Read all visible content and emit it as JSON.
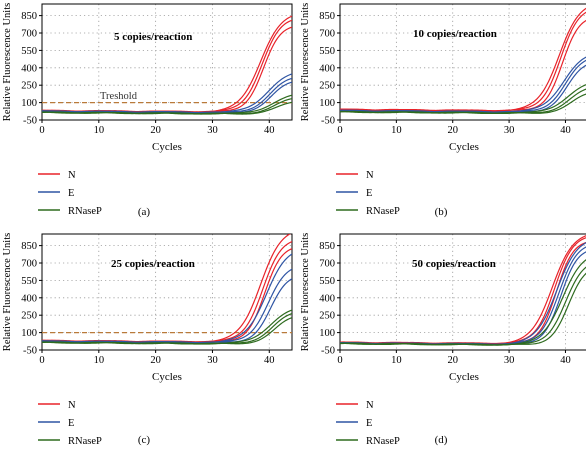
{
  "colors": {
    "N": "#e8232a",
    "E": "#2f55a4",
    "RNaseP": "#2e6b1f",
    "threshold": "#b97a3a",
    "grid": "#9a9a9a"
  },
  "shared": {
    "ylabel": "Relative Fluorescence Units",
    "xlabel": "Cycles",
    "threshold_label": "Treshold",
    "legend": [
      "N",
      "E",
      "RNaseP"
    ]
  },
  "chart_data": [
    {
      "type": "line",
      "panel_label": "(a)",
      "title": "5 copies/reaction",
      "xlabel": "Cycles",
      "ylabel": "Relative Fluorescence Units",
      "xlim": [
        0,
        44
      ],
      "ylim": [
        -50,
        950
      ],
      "xticks": [
        0,
        10,
        20,
        30,
        40
      ],
      "yticks": [
        -50,
        100,
        250,
        400,
        550,
        700,
        850
      ],
      "threshold": 100,
      "threshold_label": "Treshold",
      "grid": true,
      "legend_position": "below",
      "baseline_start": [
        30,
        25,
        15
      ],
      "series": [
        {
          "name": "N",
          "count": 3,
          "ct": [
            36.6,
            36.9,
            37.2
          ],
          "plateau": [
            860,
            820,
            760
          ]
        },
        {
          "name": "E",
          "count": 3,
          "ct": [
            37.9,
            38.3,
            38.7
          ],
          "plateau": [
            360,
            320,
            290
          ]
        },
        {
          "name": "RNaseP",
          "count": 3,
          "ct": [
            38.8,
            39.3,
            39.8
          ],
          "plateau": [
            180,
            150,
            120
          ]
        }
      ]
    },
    {
      "type": "line",
      "panel_label": "(b)",
      "title": "10 copies/reaction",
      "xlabel": "Cycles",
      "ylabel": "Relative Fluorescence Units",
      "xlim": [
        0,
        44
      ],
      "ylim": [
        -50,
        950
      ],
      "xticks": [
        0,
        10,
        20,
        30,
        40
      ],
      "yticks": [
        -50,
        100,
        250,
        400,
        550,
        700,
        850
      ],
      "threshold": null,
      "grid": true,
      "legend_position": "below",
      "baseline_start": [
        40,
        30,
        20
      ],
      "series": [
        {
          "name": "N",
          "count": 3,
          "ct": [
            37.0,
            37.3,
            37.7
          ],
          "plateau": [
            940,
            900,
            830
          ]
        },
        {
          "name": "E",
          "count": 3,
          "ct": [
            37.8,
            38.2,
            38.6
          ],
          "plateau": [
            520,
            490,
            450
          ]
        },
        {
          "name": "RNaseP",
          "count": 3,
          "ct": [
            38.5,
            39.0,
            39.5
          ],
          "plateau": [
            280,
            240,
            200
          ]
        }
      ]
    },
    {
      "type": "line",
      "panel_label": "(c)",
      "title": "25 copies/reaction",
      "xlabel": "Cycles",
      "ylabel": "Relative Fluorescence Units",
      "xlim": [
        0,
        44
      ],
      "ylim": [
        -50,
        950
      ],
      "xticks": [
        0,
        10,
        20,
        30,
        40
      ],
      "yticks": [
        -50,
        100,
        250,
        400,
        550,
        700,
        850
      ],
      "threshold": 100,
      "grid": true,
      "legend_position": "below",
      "baseline_start": [
        30,
        25,
        15
      ],
      "series": [
        {
          "name": "N",
          "count": 3,
          "ct": [
            36.6,
            37.0,
            37.4
          ],
          "plateau": [
            980,
            900,
            840
          ]
        },
        {
          "name": "E",
          "count": 3,
          "ct": [
            37.6,
            38.0,
            38.5
          ],
          "plateau": [
            820,
            680,
            600
          ]
        },
        {
          "name": "RNaseP",
          "count": 3,
          "ct": [
            38.3,
            38.8,
            39.3
          ],
          "plateau": [
            320,
            290,
            260
          ]
        }
      ]
    },
    {
      "type": "line",
      "panel_label": "(d)",
      "title": "50 copies/reaction",
      "xlabel": "Cycles",
      "ylabel": "Relative Fluorescence Units",
      "xlim": [
        0,
        44
      ],
      "ylim": [
        -50,
        950
      ],
      "xticks": [
        0,
        10,
        20,
        30,
        40
      ],
      "yticks": [
        -50,
        100,
        250,
        400,
        550,
        700,
        850
      ],
      "threshold": null,
      "grid": true,
      "legend_position": "below",
      "baseline_start": [
        15,
        10,
        5
      ],
      "series": [
        {
          "name": "N",
          "count": 3,
          "ct": [
            35.8,
            36.2,
            36.6
          ],
          "plateau": [
            960,
            940,
            900
          ]
        },
        {
          "name": "E",
          "count": 3,
          "ct": [
            36.6,
            37.0,
            37.4
          ],
          "plateau": [
            920,
            880,
            840
          ]
        },
        {
          "name": "RNaseP",
          "count": 3,
          "ct": [
            37.6,
            38.2,
            38.8
          ],
          "plateau": [
            800,
            740,
            700
          ]
        }
      ]
    }
  ]
}
